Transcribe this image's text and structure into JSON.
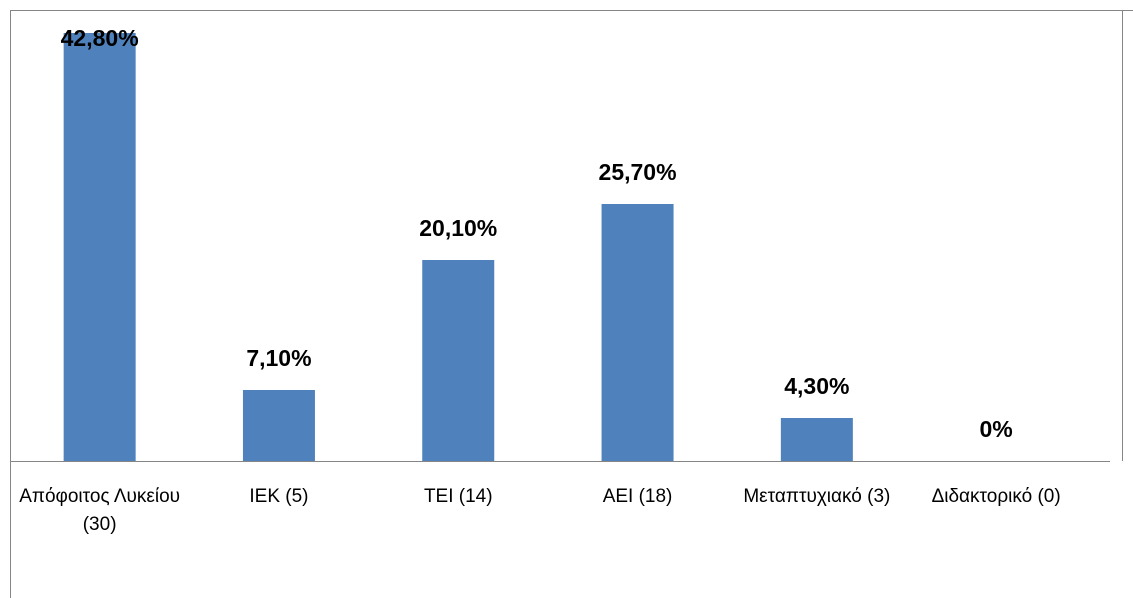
{
  "chart_data": {
    "type": "bar",
    "categories": [
      "Απόφοιτος Λυκείου (30)",
      "ΙΕΚ (5)",
      "ΤΕΙ (14)",
      "ΑΕΙ (18)",
      "Μεταπτυχιακό (3)",
      "Διδακτορικό (0)"
    ],
    "values": [
      42.8,
      7.1,
      20.1,
      25.7,
      4.3,
      0
    ],
    "value_labels": [
      "42,80%",
      "7,10%",
      "20,10%",
      "25,70%",
      "4,30%",
      "0%"
    ],
    "color": "#4f81bd"
  }
}
